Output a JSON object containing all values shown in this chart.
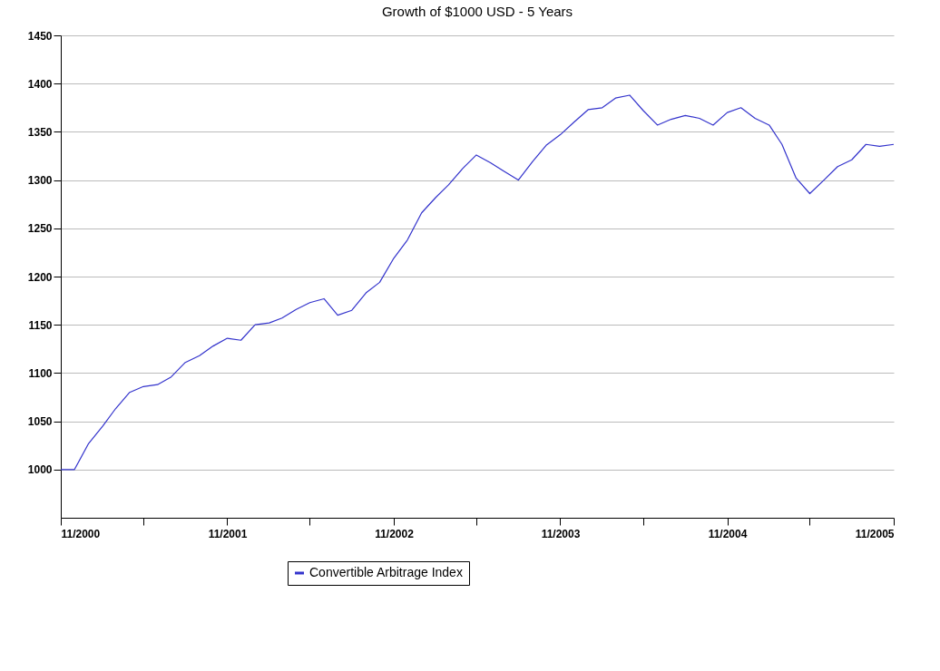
{
  "chart_data": {
    "type": "line",
    "title": "Growth of $1000 USD - 5 Years",
    "x": [
      "2000-11",
      "2000-12",
      "2001-01",
      "2001-02",
      "2001-03",
      "2001-04",
      "2001-05",
      "2001-06",
      "2001-07",
      "2001-08",
      "2001-09",
      "2001-10",
      "2001-11",
      "2001-12",
      "2002-01",
      "2002-02",
      "2002-03",
      "2002-04",
      "2002-05",
      "2002-06",
      "2002-07",
      "2002-08",
      "2002-09",
      "2002-10",
      "2002-11",
      "2002-12",
      "2003-01",
      "2003-02",
      "2003-03",
      "2003-04",
      "2003-05",
      "2003-06",
      "2003-07",
      "2003-08",
      "2003-09",
      "2003-10",
      "2003-11",
      "2003-12",
      "2004-01",
      "2004-02",
      "2004-03",
      "2004-04",
      "2004-05",
      "2004-06",
      "2004-07",
      "2004-08",
      "2004-09",
      "2004-10",
      "2004-11",
      "2004-12",
      "2005-01",
      "2005-02",
      "2005-03",
      "2005-04",
      "2005-05",
      "2005-06",
      "2005-07",
      "2005-08",
      "2005-09",
      "2005-10",
      "2005-11"
    ],
    "series": [
      {
        "name": "Convertible Arbitrage Index",
        "color": "#3333cc",
        "values": [
          1000,
          1000,
          1027,
          1045,
          1063,
          1080,
          1086,
          1088,
          1096,
          1111,
          1118,
          1128,
          1136,
          1134,
          1150,
          1152,
          1157,
          1166,
          1173,
          1177,
          1160,
          1165,
          1183,
          1194,
          1219,
          1238,
          1266,
          1282,
          1295,
          1312,
          1326,
          1318,
          1309,
          1300,
          1319,
          1336,
          1347,
          1360,
          1373,
          1375,
          1385,
          1388,
          1372,
          1357,
          1363,
          1367,
          1364,
          1357,
          1370,
          1375,
          1364,
          1357,
          1337,
          1302,
          1286,
          1300,
          1314,
          1321,
          1337,
          1335,
          1337
        ]
      }
    ],
    "xlim": [
      "2000-11",
      "2005-11"
    ],
    "xticks": [
      {
        "value": "2000-11",
        "label": "11/2000"
      },
      {
        "value": "2001-05",
        "label": null
      },
      {
        "value": "2001-11",
        "label": "11/2001"
      },
      {
        "value": "2002-05",
        "label": null
      },
      {
        "value": "2002-11",
        "label": "11/2002"
      },
      {
        "value": "2003-05",
        "label": null
      },
      {
        "value": "2003-11",
        "label": "11/2003"
      },
      {
        "value": "2004-05",
        "label": null
      },
      {
        "value": "2004-11",
        "label": "11/2004"
      },
      {
        "value": "2005-05",
        "label": null
      },
      {
        "value": "2005-11",
        "label": "11/2005"
      }
    ],
    "ylim": [
      950,
      1450
    ],
    "yticks": [
      1000,
      1050,
      1100,
      1150,
      1200,
      1250,
      1300,
      1350,
      1400,
      1450
    ],
    "grid": "y",
    "legend": "bottom",
    "line_style": "solid"
  }
}
